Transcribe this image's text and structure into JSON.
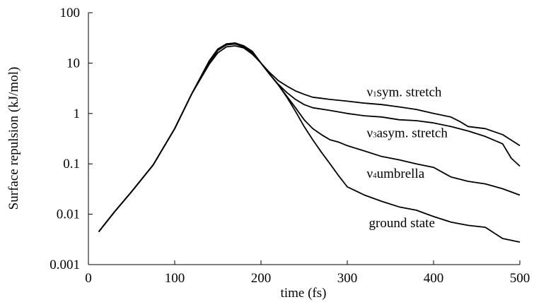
{
  "chart_data": {
    "type": "line",
    "xlabel": "time (fs)",
    "ylabel": "Surface repulsion (kJ/mol)",
    "xlim": [
      0,
      500
    ],
    "ylim": [
      0.001,
      100
    ],
    "yscale": "log",
    "grid": false,
    "legend": "none (series labelled inline)",
    "x_ticks": [
      "0",
      "100",
      "200",
      "300",
      "400",
      "500"
    ],
    "y_ticks": [
      "0.001",
      "0.01",
      "0.1",
      "1",
      "10",
      "100"
    ],
    "series": [
      {
        "name": "ν1sym. stretch",
        "label_symbol": "ν",
        "label_sub": "1",
        "label_text": "sym. stretch",
        "x": [
          12,
          30,
          50,
          75,
          100,
          120,
          140,
          150,
          160,
          170,
          180,
          190,
          200,
          210,
          220,
          230,
          240,
          250,
          260,
          270,
          280,
          300,
          320,
          340,
          360,
          380,
          400,
          420,
          430,
          440,
          460,
          480,
          500
        ],
        "y": [
          0.0045,
          0.011,
          0.028,
          0.095,
          0.5,
          2.5,
          9.5,
          16,
          21,
          22,
          20,
          15,
          10,
          6.5,
          4.5,
          3.5,
          2.8,
          2.4,
          2.1,
          2.0,
          1.9,
          1.75,
          1.6,
          1.5,
          1.35,
          1.2,
          1.0,
          0.85,
          0.7,
          0.55,
          0.5,
          0.38,
          0.23
        ]
      },
      {
        "name": "ν3asym. stretch",
        "label_symbol": "ν",
        "label_sub": "3",
        "label_text": "asym. stretch",
        "x": [
          12,
          30,
          50,
          75,
          100,
          120,
          140,
          150,
          160,
          170,
          180,
          190,
          200,
          210,
          220,
          230,
          240,
          250,
          260,
          280,
          300,
          320,
          340,
          360,
          380,
          400,
          420,
          440,
          460,
          480,
          490,
          500
        ],
        "y": [
          0.0045,
          0.011,
          0.028,
          0.095,
          0.5,
          2.5,
          10,
          18,
          23,
          24,
          21,
          16,
          10,
          6,
          3.8,
          2.6,
          1.9,
          1.5,
          1.3,
          1.15,
          1.0,
          0.9,
          0.85,
          0.75,
          0.72,
          0.65,
          0.55,
          0.45,
          0.35,
          0.25,
          0.13,
          0.09
        ]
      },
      {
        "name": "ν4umbrella",
        "label_symbol": "ν",
        "label_sub": "4",
        "label_text": "umbrella",
        "x": [
          12,
          30,
          50,
          75,
          100,
          120,
          140,
          150,
          160,
          170,
          180,
          190,
          200,
          210,
          220,
          230,
          240,
          250,
          260,
          270,
          280,
          290,
          300,
          320,
          340,
          360,
          380,
          400,
          420,
          440,
          460,
          480,
          500
        ],
        "y": [
          0.0045,
          0.011,
          0.028,
          0.095,
          0.5,
          2.5,
          11,
          19,
          24,
          25,
          22,
          17,
          10,
          6,
          3.7,
          2.2,
          1.3,
          0.75,
          0.5,
          0.38,
          0.3,
          0.27,
          0.23,
          0.18,
          0.14,
          0.12,
          0.1,
          0.085,
          0.055,
          0.045,
          0.04,
          0.032,
          0.024
        ]
      },
      {
        "name": "ground state",
        "label_symbol": "",
        "label_sub": "",
        "label_text": "ground state",
        "x": [
          12,
          30,
          50,
          75,
          100,
          120,
          140,
          150,
          160,
          170,
          180,
          190,
          200,
          210,
          220,
          230,
          240,
          250,
          260,
          270,
          280,
          290,
          300,
          320,
          340,
          360,
          380,
          400,
          420,
          440,
          460,
          480,
          500
        ],
        "y": [
          0.0045,
          0.011,
          0.028,
          0.095,
          0.5,
          2.5,
          11,
          19,
          24,
          25,
          22,
          17,
          10,
          6,
          3.7,
          2.1,
          1.1,
          0.55,
          0.3,
          0.17,
          0.1,
          0.058,
          0.035,
          0.024,
          0.018,
          0.014,
          0.012,
          0.009,
          0.007,
          0.006,
          0.0055,
          0.0033,
          0.0028
        ]
      }
    ]
  }
}
